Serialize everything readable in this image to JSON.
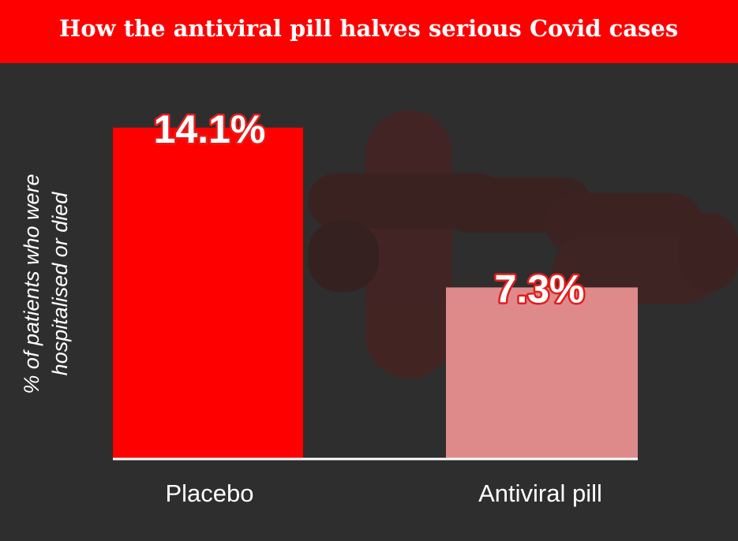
{
  "chart_data": {
    "type": "bar",
    "title": "How the antiviral pill halves serious Covid cases",
    "y_label": [
      "% of patients who were",
      "hospitalised or died"
    ],
    "categories": [
      "Placebo",
      "Antiviral pill"
    ],
    "values": [
      14.1,
      7.3
    ],
    "value_labels": [
      "14.1%",
      "7.3%"
    ],
    "colors": [
      "#ff0000",
      "#de8a8a"
    ],
    "ylim": [
      0,
      15
    ]
  }
}
